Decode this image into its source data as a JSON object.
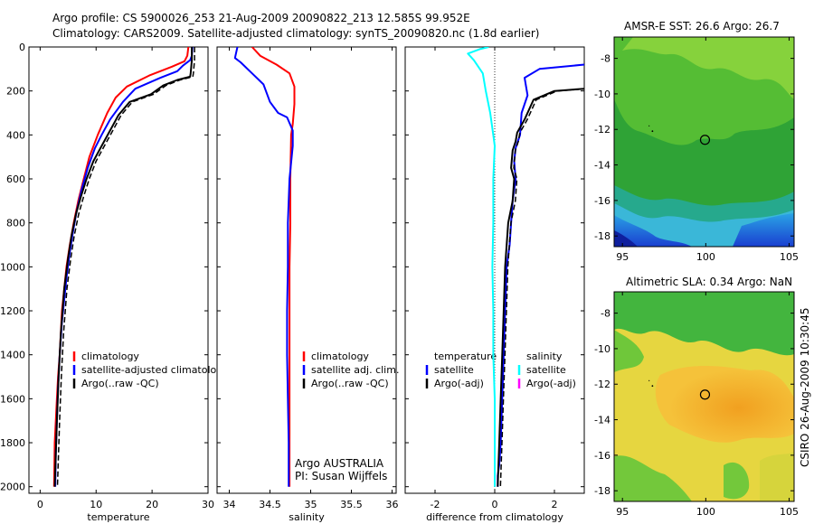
{
  "title": {
    "line1": "Argo profile: CS 5900026_253 21-Aug-2009 20090822_213 12.585S 99.952E",
    "line2": "Climatology: CARS2009. Satellite-adjusted climatology: synTS_20090820.nc (1.8d earlier)"
  },
  "credit": "CSIRO 26-Aug-2009 10:30:45",
  "colors": {
    "climatology": "#ff0000",
    "satellite": "#0000ff",
    "argo": "#000000",
    "salinity_satellite": "#00ffff",
    "salinity_argo": "#ff00ff"
  },
  "chart_data": [
    {
      "type": "line",
      "name": "temperature-profile",
      "xlabel": "temperature",
      "ylabel": "",
      "xlim": [
        -2,
        30
      ],
      "ylim": [
        2030,
        0
      ],
      "xticks": [
        "0",
        "10",
        "20",
        "30"
      ],
      "yticks": [
        "0",
        "200",
        "400",
        "600",
        "800",
        "1000",
        "1200",
        "1400",
        "1600",
        "1800",
        "2000"
      ],
      "legend_position": "lower-right",
      "series": [
        {
          "name": "climatology",
          "color": "#ff0000",
          "x": [
            26.5,
            26.3,
            25.8,
            23.5,
            19.5,
            15.5,
            13.5,
            12.0,
            10.3,
            8.8,
            7.8,
            6.8,
            6.0,
            5.3,
            4.7,
            4.3,
            3.9,
            3.5,
            3.2,
            3.0,
            2.8,
            2.6,
            2.5
          ],
          "y": [
            0,
            40,
            65,
            90,
            130,
            180,
            230,
            300,
            400,
            500,
            600,
            700,
            800,
            900,
            1000,
            1100,
            1200,
            1400,
            1500,
            1600,
            1700,
            1800,
            2000
          ]
        },
        {
          "name": "satellite-adjusted climatology",
          "color": "#0000ff",
          "x": [
            27.2,
            27.1,
            26.8,
            25.5,
            24.5,
            21.5,
            17.0,
            14.8,
            12.5,
            11.0,
            9.8,
            8.5,
            7.4,
            6.5,
            5.8,
            5.2,
            4.7,
            3.9,
            3.5,
            3.2,
            3.0,
            2.8,
            2.7
          ],
          "y": [
            0,
            40,
            60,
            85,
            110,
            140,
            190,
            250,
            330,
            400,
            460,
            550,
            650,
            750,
            850,
            950,
            1050,
            1250,
            1400,
            1550,
            1700,
            1850,
            2000
          ]
        },
        {
          "name": "Argo(..raw -QC)",
          "color": "#000000",
          "dashed": true,
          "x": [
            27.1,
            27.1,
            26.9,
            26.8,
            24.5,
            22.0,
            19.8,
            16.0,
            14.0,
            12.5,
            11.0,
            9.5,
            8.3,
            7.3,
            6.4,
            5.6,
            5.0,
            4.3,
            3.7,
            3.3,
            3.0,
            2.8,
            2.6
          ],
          "y": [
            0,
            60,
            120,
            135,
            150,
            175,
            215,
            250,
            310,
            380,
            450,
            520,
            600,
            680,
            760,
            860,
            960,
            1100,
            1300,
            1500,
            1700,
            1850,
            2000
          ]
        }
      ],
      "annotation": []
    },
    {
      "type": "line",
      "name": "salinity-profile",
      "xlabel": "salinity",
      "ylabel": "",
      "xlim": [
        33.85,
        36.05
      ],
      "ylim": [
        2030,
        0
      ],
      "xticks": [
        "34",
        "34.5",
        "35",
        "35.5",
        "36"
      ],
      "legend_position": "lower-right",
      "series": [
        {
          "name": "climatology",
          "color": "#ff0000",
          "x": [
            34.28,
            34.38,
            34.58,
            34.74,
            34.8,
            34.8,
            34.78,
            34.76,
            34.75,
            34.75,
            34.74,
            34.74,
            34.74,
            34.74,
            34.74
          ],
          "y": [
            0,
            40,
            80,
            120,
            180,
            260,
            350,
            400,
            600,
            800,
            1000,
            1200,
            1500,
            1800,
            2000
          ]
        },
        {
          "name": "satellite adj. clim.",
          "color": "#0000ff",
          "x": [
            34.1,
            34.07,
            34.14,
            34.28,
            34.42,
            34.5,
            34.6,
            34.71,
            34.78,
            34.78,
            34.74,
            34.72,
            34.72,
            34.71,
            34.71,
            34.72,
            34.73,
            34.73
          ],
          "y": [
            0,
            50,
            70,
            120,
            170,
            250,
            300,
            320,
            380,
            450,
            600,
            800,
            1000,
            1200,
            1400,
            1600,
            1800,
            2000
          ]
        },
        {
          "name": "Argo(..raw -QC)",
          "color": "#000000",
          "x": [],
          "y": []
        }
      ],
      "annotation": [
        "Argo AUSTRALIA",
        "PI: Susan Wijffels"
      ]
    },
    {
      "type": "line",
      "name": "difference-profile",
      "xlabel": "difference from climatology",
      "ylabel": "",
      "xlim": [
        -3,
        3
      ],
      "ylim": [
        2030,
        0
      ],
      "xticks": [
        "-2",
        "0",
        "2"
      ],
      "legend_groups": [
        {
          "title": "temperature",
          "entries": [
            {
              "label": "satellite",
              "color": "#0000ff"
            },
            {
              "label": "Argo(-adj)",
              "color": "#000000"
            }
          ]
        },
        {
          "title": "salinity",
          "entries": [
            {
              "label": "satellite",
              "color": "#00ffff"
            },
            {
              "label": "Argo(-adj)",
              "color": "#ff00ff"
            }
          ]
        }
      ],
      "series": [
        {
          "name": "temperature satellite",
          "color": "#0000ff",
          "x": [
            3.0,
            1.5,
            1.0,
            1.1,
            0.9,
            0.85,
            0.7,
            0.65,
            0.7,
            0.6,
            0.55,
            0.5,
            0.4,
            0.35,
            0.3,
            0.25,
            0.2,
            0.15,
            0.1,
            0.1
          ],
          "y": [
            80,
            100,
            140,
            220,
            300,
            400,
            460,
            520,
            600,
            700,
            800,
            900,
            1000,
            1200,
            1400,
            1600,
            1800,
            1900,
            1950,
            2000
          ]
        },
        {
          "name": "temperature Argo(-adj)",
          "color": "#000000",
          "dashed": true,
          "x": [
            3.0,
            2.0,
            1.3,
            1.0,
            0.75,
            0.7,
            0.6,
            0.55,
            0.65,
            0.6,
            0.45,
            0.4,
            0.35,
            0.3,
            0.25,
            0.2,
            0.15,
            0.1
          ],
          "y": [
            190,
            200,
            240,
            330,
            390,
            430,
            470,
            550,
            600,
            700,
            800,
            900,
            1000,
            1200,
            1400,
            1600,
            1800,
            2000
          ]
        },
        {
          "name": "salinity satellite",
          "color": "#00ffff",
          "x": [
            -0.2,
            -0.5,
            -0.9,
            -0.7,
            -0.4,
            -0.3,
            -0.15,
            -0.05,
            0.0,
            -0.05,
            -0.05,
            -0.08,
            -0.05,
            -0.05,
            0.0,
            0.0,
            0.0
          ],
          "y": [
            0,
            10,
            30,
            60,
            120,
            200,
            300,
            400,
            450,
            600,
            800,
            1000,
            1200,
            1400,
            1600,
            1800,
            2000
          ]
        }
      ],
      "annotation": []
    },
    {
      "type": "heatmap",
      "name": "amsre-sst-map",
      "title": "AMSR-E SST: 26.6 Argo: 26.7",
      "xticks": [
        "95",
        "100",
        "105"
      ],
      "yticks": [
        "-8",
        "-10",
        "-12",
        "-14",
        "-16",
        "-18"
      ],
      "xlim": [
        94.5,
        105.3
      ],
      "ylim": [
        -18.6,
        -6.8
      ],
      "marker": {
        "lon": 99.952,
        "lat": -12.585
      }
    },
    {
      "type": "heatmap",
      "name": "altimetric-sla-map",
      "title": "Altimetric SLA: 0.34 Argo: NaN",
      "xticks": [
        "95",
        "100",
        "105"
      ],
      "yticks": [
        "-8",
        "-10",
        "-12",
        "-14",
        "-16",
        "-18"
      ],
      "xlim": [
        94.5,
        105.3
      ],
      "ylim": [
        -18.6,
        -6.8
      ],
      "marker": {
        "lon": 99.952,
        "lat": -12.585
      }
    }
  ]
}
